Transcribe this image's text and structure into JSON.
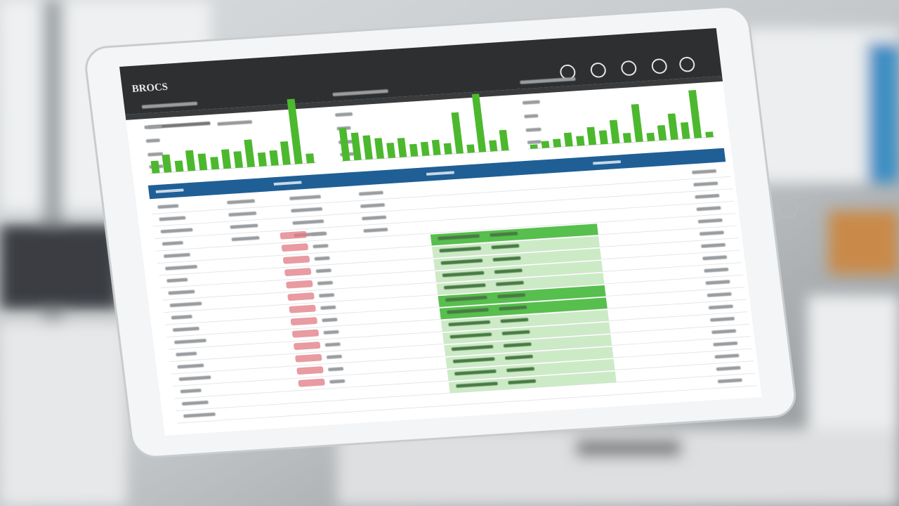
{
  "header": {
    "title": "BROCS"
  },
  "chart_data": [
    {
      "type": "bar",
      "color": "#4cb82e",
      "values": [
        18,
        26,
        16,
        30,
        24,
        18,
        28,
        24,
        40,
        20,
        22,
        34,
        95,
        14
      ]
    },
    {
      "type": "bar",
      "color": "#4cb82e",
      "values": [
        48,
        40,
        35,
        30,
        22,
        28,
        18,
        20,
        22,
        16,
        60,
        12,
        85,
        16,
        30
      ]
    },
    {
      "type": "bar",
      "color": "#4cb82e",
      "values": [
        6,
        10,
        12,
        20,
        14,
        26,
        20,
        34,
        14,
        55,
        12,
        22,
        38,
        24,
        70,
        8
      ]
    }
  ]
}
